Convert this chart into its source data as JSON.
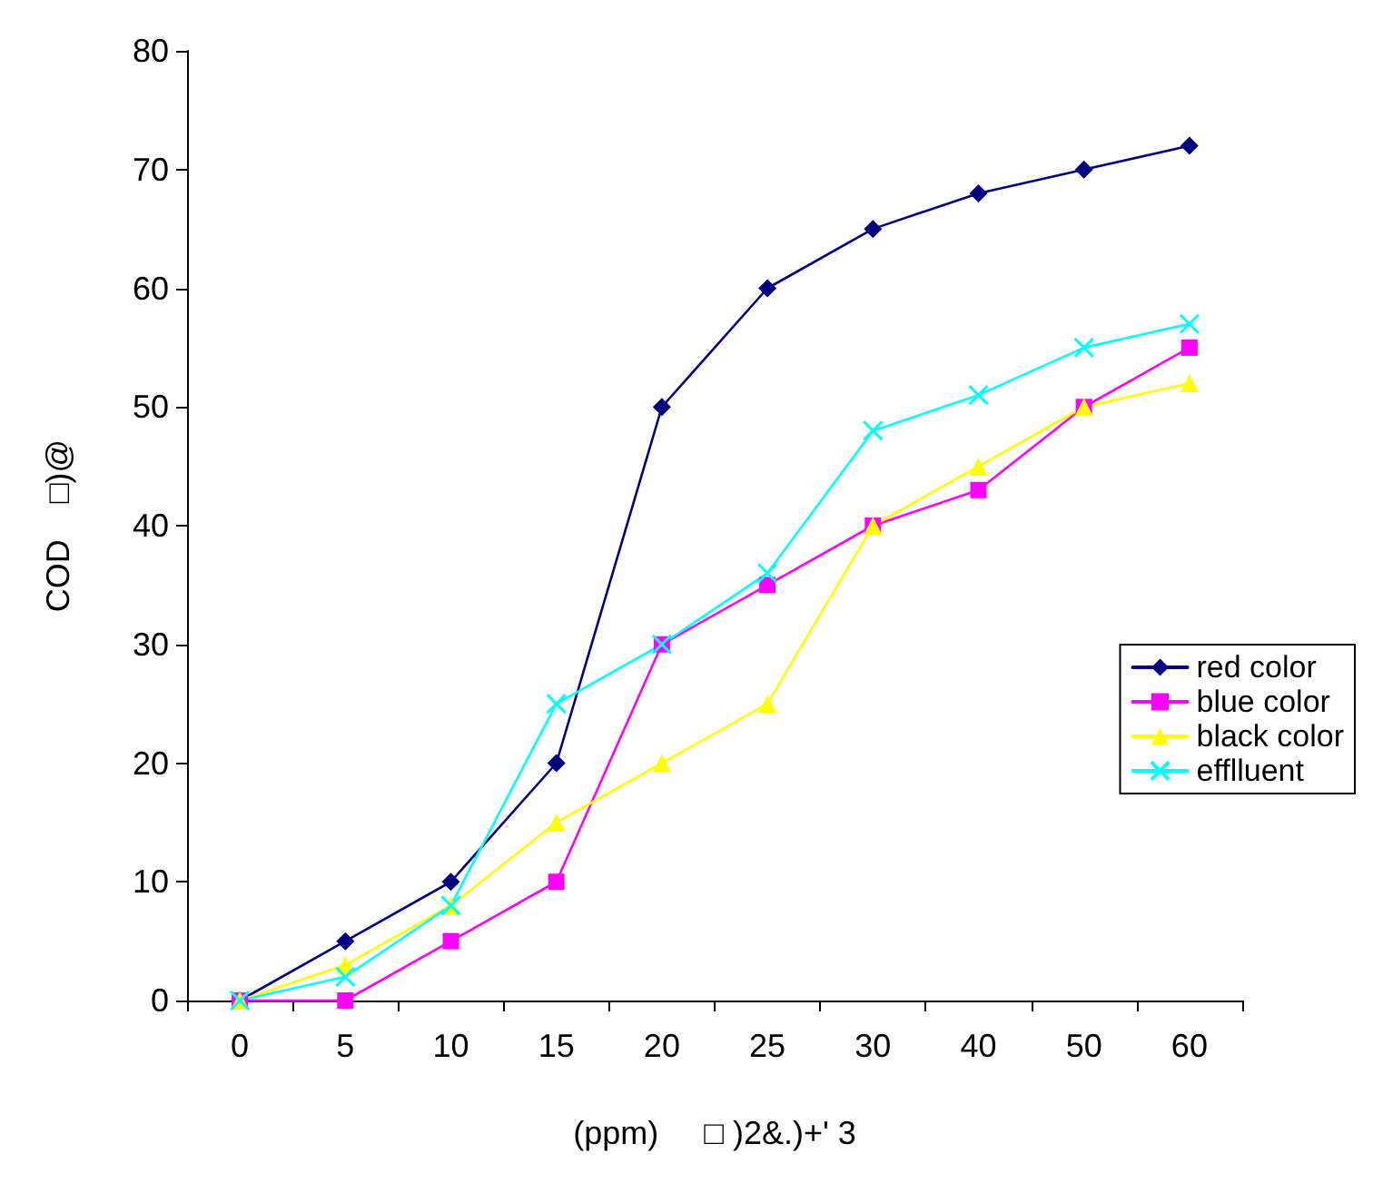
{
  "chart_data": {
    "type": "line",
    "xlabel": "(ppm)     □ )2&.)+' 3",
    "ylabel": "COD    □)@",
    "categories": [
      "0",
      "5",
      "10",
      "15",
      "20",
      "25",
      "30",
      "40",
      "50",
      "60"
    ],
    "ylim": [
      0,
      80
    ],
    "yticks": [
      0,
      10,
      20,
      30,
      40,
      50,
      60,
      70,
      80
    ],
    "grid": false,
    "legend": "right",
    "line_style": "solid",
    "series": [
      {
        "name": "red color",
        "color": "#000080",
        "marker": "diamond",
        "values": [
          0,
          5,
          10,
          20,
          50,
          60,
          65,
          68,
          70,
          72
        ]
      },
      {
        "name": "blue color",
        "color": "#ff00ff",
        "marker": "square",
        "values": [
          0,
          0,
          5,
          10,
          30,
          35,
          40,
          43,
          50,
          55
        ]
      },
      {
        "name": "black color",
        "color": "#ffff00",
        "marker": "triangle",
        "values": [
          0,
          3,
          8,
          15,
          20,
          25,
          40,
          45,
          50,
          52
        ]
      },
      {
        "name": "efflluent",
        "color": "#00ffff",
        "marker": "cross",
        "values": [
          0,
          2,
          8,
          25,
          30,
          36,
          48,
          51,
          55,
          57
        ]
      }
    ]
  }
}
